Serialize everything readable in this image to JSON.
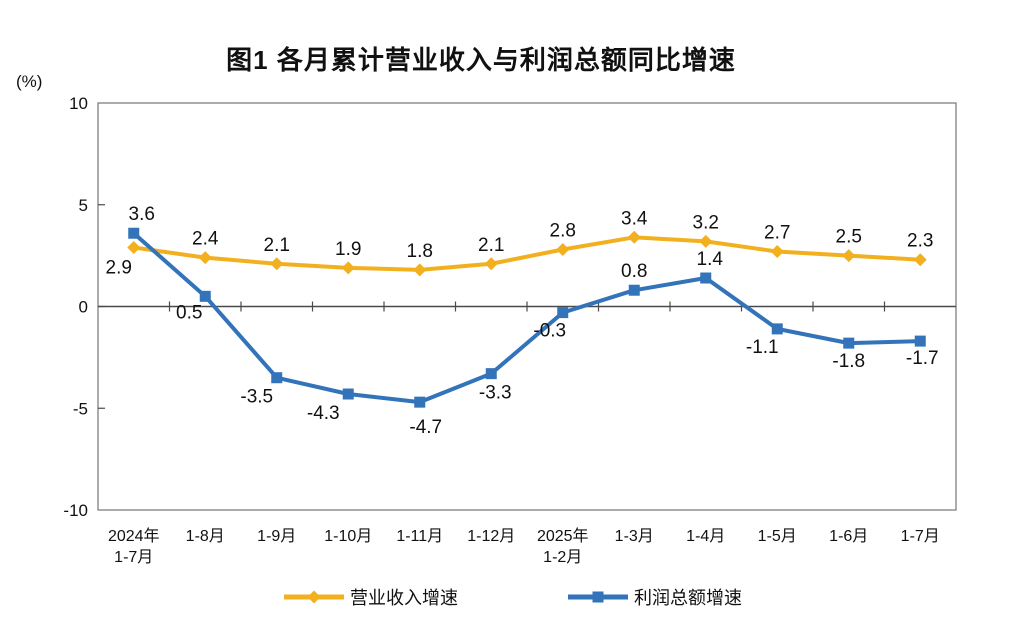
{
  "title": "图1  各月累计营业收入与利润总额同比增速",
  "y_axis": {
    "unit_label": "(%)",
    "ticks": [
      10,
      5,
      0,
      -5,
      -10
    ],
    "min": -10,
    "max": 10
  },
  "x_axis": {
    "category_lines": [
      [
        "2024年",
        "1-7月"
      ],
      [
        "1-8月"
      ],
      [
        "1-9月"
      ],
      [
        "1-10月"
      ],
      [
        "1-11月"
      ],
      [
        "1-12月"
      ],
      [
        "2025年",
        "1-2月"
      ],
      [
        "1-3月"
      ],
      [
        "1-4月"
      ],
      [
        "1-5月"
      ],
      [
        "1-6月"
      ],
      [
        "1-7月"
      ]
    ]
  },
  "chart_data": {
    "type": "line",
    "title": "图1  各月累计营业收入与利润总额同比增速",
    "ylabel": "(%)",
    "ylim": [
      -10,
      10
    ],
    "grid": false,
    "legend_position": "bottom",
    "categories": [
      "2024年1-7月",
      "1-8月",
      "1-9月",
      "1-10月",
      "1-11月",
      "1-12月",
      "2025年1-2月",
      "1-3月",
      "1-4月",
      "1-5月",
      "1-6月",
      "1-7月"
    ],
    "series": [
      {
        "name": "营业收入增速",
        "color": "#F2B01F",
        "marker": "diamond",
        "values": [
          2.9,
          2.4,
          2.1,
          1.9,
          1.8,
          2.1,
          2.8,
          3.4,
          3.2,
          2.7,
          2.5,
          2.3
        ],
        "label_offsets": [
          [
            -15,
            26
          ],
          [
            0,
            -13
          ],
          [
            0,
            -13
          ],
          [
            0,
            -13
          ],
          [
            0,
            -13
          ],
          [
            0,
            -13
          ],
          [
            0,
            -13
          ],
          [
            0,
            -13
          ],
          [
            0,
            -13
          ],
          [
            0,
            -13
          ],
          [
            0,
            -13
          ],
          [
            0,
            -13
          ]
        ]
      },
      {
        "name": "利润总额增速",
        "color": "#3273BA",
        "marker": "square",
        "values": [
          3.6,
          0.5,
          -3.5,
          -4.3,
          -4.7,
          -3.3,
          -0.3,
          0.8,
          1.4,
          -1.1,
          -1.8,
          -1.7
        ],
        "label_offsets": [
          [
            8,
            -13
          ],
          [
            -16,
            22
          ],
          [
            -20,
            25
          ],
          [
            -25,
            25
          ],
          [
            6,
            31
          ],
          [
            4,
            25
          ],
          [
            -13,
            24
          ],
          [
            0,
            -13
          ],
          [
            4,
            -13
          ],
          [
            -15,
            24
          ],
          [
            0,
            24
          ],
          [
            2,
            23
          ]
        ]
      }
    ]
  },
  "legend": {
    "items": [
      {
        "label": "营业收入增速",
        "color": "#F2B01F",
        "marker": "diamond"
      },
      {
        "label": "利润总额增速",
        "color": "#3273BA",
        "marker": "square"
      }
    ]
  },
  "style_colors": {
    "plot_border": "#808080",
    "zero_line": "#4a4a4a",
    "text": "#111111"
  }
}
